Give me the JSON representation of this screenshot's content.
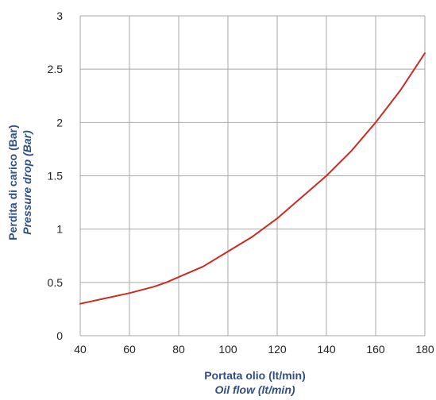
{
  "chart_data": {
    "type": "line",
    "x_ticks": [
      "40",
      "60",
      "80",
      "100",
      "120",
      "140",
      "160",
      "180"
    ],
    "y_ticks": [
      "0",
      "0.5",
      "1",
      "1.5",
      "2",
      "2.5",
      "3"
    ],
    "xlim": [
      40,
      180
    ],
    "ylim": [
      0,
      3
    ],
    "grid": true,
    "xlabel": "Portata olio (lt/min)",
    "xlabel_en": "Oil flow (lt/min)",
    "ylabel": "Perdita di carico (Bar)",
    "ylabel_en": "Pressure drop (Bar)",
    "series": [
      {
        "color": "#cc2a22",
        "x": [
          40,
          50,
          60,
          70,
          75,
          80,
          90,
          100,
          110,
          120,
          130,
          140,
          150,
          160,
          170,
          180
        ],
        "y": [
          0.3,
          0.35,
          0.4,
          0.46,
          0.5,
          0.55,
          0.65,
          0.79,
          0.93,
          1.1,
          1.3,
          1.5,
          1.73,
          2.0,
          2.3,
          2.65
        ]
      }
    ],
    "colors": {
      "grid": "#a9a9a9",
      "axis_title": "#2f4f86",
      "tick_text": "#222222"
    }
  }
}
